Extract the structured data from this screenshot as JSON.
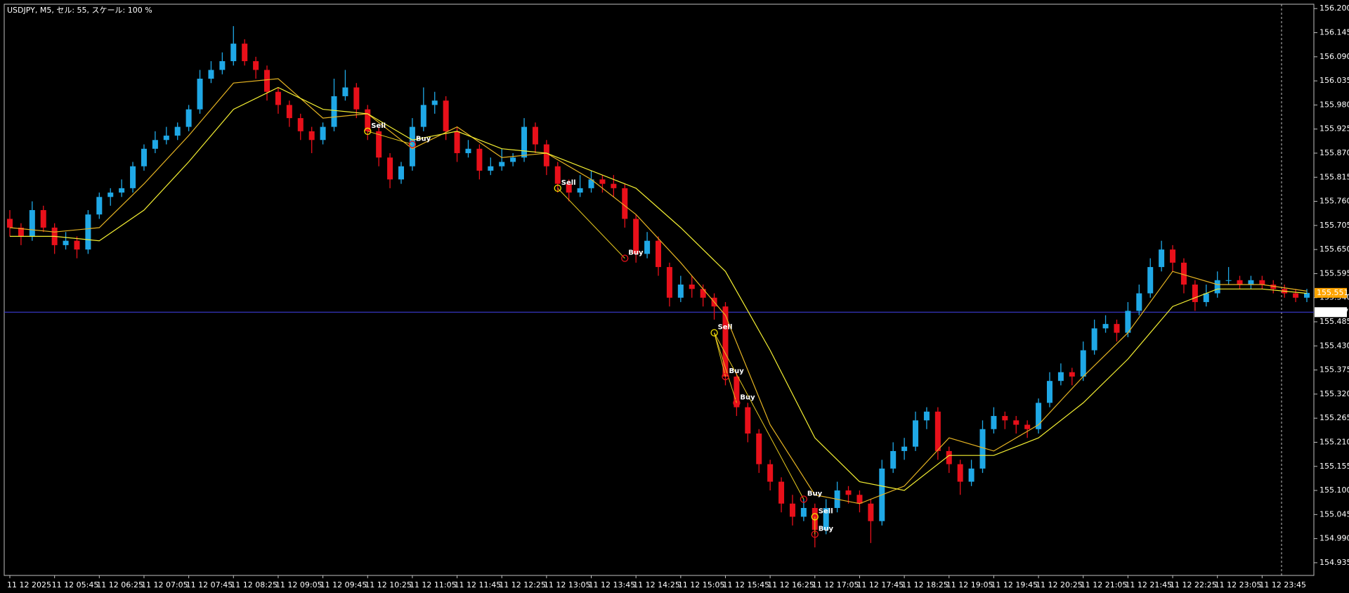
{
  "chart_data": {
    "type": "candlestick",
    "title": "USDJPY, M5, セル: 55, スケール: 100 %",
    "bull_color": "#1fa8e6",
    "bear_color": "#e8101a",
    "categories": [
      "11 12 2025",
      null,
      null,
      null,
      "11 12 05:45",
      null,
      null,
      null,
      "11 12 06:25",
      null,
      null,
      null,
      "11 12 07:05",
      null,
      null,
      null,
      "11 12 07:45",
      null,
      null,
      null,
      "11 12 08:25",
      null,
      null,
      null,
      "11 12 09:05",
      null,
      null,
      null,
      "11 12 09:45",
      null,
      null,
      null,
      "11 12 10:25",
      null,
      null,
      null,
      "11 12 11:05",
      null,
      null,
      null,
      "11 12 11:45",
      null,
      null,
      null,
      "11 12 12:25",
      null,
      null,
      null,
      "11 12 13:05",
      null,
      null,
      null,
      "11 12 13:45",
      null,
      null,
      null,
      "11 12 14:25",
      null,
      null,
      null,
      "11 12 15:05",
      null,
      null,
      null,
      "11 12 15:45",
      null,
      null,
      null,
      "11 12 16:25",
      null,
      null,
      null,
      "11 12 17:05",
      null,
      null,
      null,
      "11 12 17:45",
      null,
      null,
      null,
      "11 12 18:25",
      null,
      null,
      null,
      "11 12 19:05",
      null,
      null,
      null,
      "11 12 19:45",
      null,
      null,
      null,
      "11 12 20:25",
      null,
      null,
      null,
      "11 12 21:05",
      null,
      null,
      null,
      "11 12 21:45",
      null,
      null,
      null,
      "11 12 22:25",
      null,
      null,
      null,
      "11 12 23:05",
      null,
      null,
      null,
      "11 12 23:45",
      null,
      null,
      null,
      null
    ],
    "open": [
      155.72,
      155.7,
      155.68,
      155.74,
      155.7,
      155.66,
      155.67,
      155.65,
      155.73,
      155.77,
      155.78,
      155.79,
      155.84,
      155.88,
      155.9,
      155.91,
      155.93,
      155.97,
      156.04,
      156.06,
      156.08,
      156.12,
      156.08,
      156.06,
      156.01,
      155.98,
      155.95,
      155.92,
      155.9,
      155.93,
      156.0,
      156.02,
      155.97,
      155.92,
      155.86,
      155.81,
      155.84,
      155.93,
      155.98,
      155.99,
      155.92,
      155.87,
      155.88,
      155.83,
      155.84,
      155.85,
      155.86,
      155.93,
      155.89,
      155.84,
      155.8,
      155.78,
      155.79,
      155.81,
      155.8,
      155.79,
      155.72,
      155.64,
      155.67,
      155.61,
      155.54,
      155.57,
      155.56,
      155.54,
      155.52,
      155.36,
      155.29,
      155.23,
      155.16,
      155.12,
      155.07,
      155.04,
      155.06,
      155.01,
      155.06,
      155.1,
      155.09,
      155.07,
      155.03,
      155.15,
      155.19,
      155.2,
      155.26,
      155.28,
      155.19,
      155.16,
      155.12,
      155.15,
      155.24,
      155.27,
      155.26,
      155.25,
      155.24,
      155.3,
      155.35,
      155.37,
      155.36,
      155.42,
      155.47,
      155.48,
      155.46,
      155.51,
      155.55,
      155.61,
      155.65,
      155.62,
      155.57,
      155.53,
      155.55,
      155.58,
      155.58,
      155.57,
      155.58,
      155.57,
      155.56,
      155.55,
      155.54
    ],
    "high": [
      155.74,
      155.71,
      155.76,
      155.75,
      155.71,
      155.69,
      155.68,
      155.74,
      155.78,
      155.79,
      155.81,
      155.85,
      155.89,
      155.92,
      155.93,
      155.94,
      155.98,
      156.06,
      156.08,
      156.1,
      156.16,
      156.13,
      156.09,
      156.07,
      156.02,
      155.99,
      155.96,
      155.93,
      155.94,
      156.04,
      156.06,
      156.03,
      155.98,
      155.93,
      155.87,
      155.85,
      155.95,
      156.02,
      156.01,
      156.0,
      155.93,
      155.9,
      155.89,
      155.86,
      155.88,
      155.87,
      155.95,
      155.94,
      155.9,
      155.85,
      155.81,
      155.82,
      155.83,
      155.82,
      155.82,
      155.8,
      155.73,
      155.69,
      155.68,
      155.62,
      155.59,
      155.59,
      155.57,
      155.55,
      155.53,
      155.37,
      155.3,
      155.24,
      155.17,
      155.13,
      155.09,
      155.08,
      155.07,
      155.08,
      155.12,
      155.11,
      155.1,
      155.08,
      155.17,
      155.21,
      155.22,
      155.28,
      155.29,
      155.29,
      155.2,
      155.17,
      155.17,
      155.26,
      155.29,
      155.28,
      155.27,
      155.26,
      155.31,
      155.37,
      155.39,
      155.38,
      155.44,
      155.49,
      155.5,
      155.49,
      155.53,
      155.57,
      155.63,
      155.67,
      155.66,
      155.63,
      155.58,
      155.57,
      155.6,
      155.61,
      155.59,
      155.59,
      155.59,
      155.58,
      155.57,
      155.56,
      155.56
    ],
    "low": [
      155.68,
      155.66,
      155.67,
      155.69,
      155.64,
      155.65,
      155.63,
      155.64,
      155.72,
      155.75,
      155.77,
      155.78,
      155.83,
      155.87,
      155.89,
      155.9,
      155.92,
      155.96,
      156.03,
      156.05,
      156.07,
      156.07,
      156.04,
      155.99,
      155.96,
      155.93,
      155.9,
      155.87,
      155.89,
      155.92,
      155.99,
      155.95,
      155.9,
      155.84,
      155.79,
      155.8,
      155.83,
      155.92,
      155.96,
      155.9,
      155.85,
      155.86,
      155.81,
      155.82,
      155.83,
      155.84,
      155.85,
      155.87,
      155.82,
      155.78,
      155.76,
      155.77,
      155.78,
      155.78,
      155.77,
      155.7,
      155.62,
      155.63,
      155.59,
      155.52,
      155.53,
      155.54,
      155.52,
      155.49,
      155.34,
      155.27,
      155.21,
      155.14,
      155.1,
      155.05,
      155.02,
      155.03,
      154.97,
      155.0,
      155.05,
      155.07,
      155.05,
      154.98,
      155.02,
      155.14,
      155.17,
      155.19,
      155.24,
      155.17,
      155.14,
      155.09,
      155.11,
      155.14,
      155.23,
      155.24,
      155.23,
      155.22,
      155.23,
      155.29,
      155.34,
      155.34,
      155.35,
      155.41,
      155.46,
      155.44,
      155.45,
      155.5,
      155.54,
      155.6,
      155.6,
      155.55,
      155.51,
      155.52,
      155.54,
      155.57,
      155.56,
      155.56,
      155.56,
      155.55,
      155.54,
      155.53,
      155.53
    ],
    "close": [
      155.7,
      155.68,
      155.74,
      155.7,
      155.66,
      155.67,
      155.65,
      155.73,
      155.77,
      155.78,
      155.79,
      155.84,
      155.88,
      155.9,
      155.91,
      155.93,
      155.97,
      156.04,
      156.06,
      156.08,
      156.12,
      156.08,
      156.06,
      156.01,
      155.98,
      155.95,
      155.92,
      155.9,
      155.93,
      156.0,
      156.02,
      155.97,
      155.92,
      155.86,
      155.81,
      155.84,
      155.93,
      155.98,
      155.99,
      155.92,
      155.87,
      155.88,
      155.83,
      155.84,
      155.85,
      155.86,
      155.93,
      155.89,
      155.84,
      155.8,
      155.78,
      155.79,
      155.81,
      155.8,
      155.79,
      155.72,
      155.64,
      155.67,
      155.61,
      155.54,
      155.57,
      155.56,
      155.54,
      155.52,
      155.36,
      155.29,
      155.23,
      155.16,
      155.12,
      155.07,
      155.04,
      155.06,
      155.01,
      155.06,
      155.1,
      155.09,
      155.07,
      155.03,
      155.15,
      155.19,
      155.2,
      155.26,
      155.28,
      155.19,
      155.16,
      155.12,
      155.15,
      155.24,
      155.27,
      155.26,
      155.25,
      155.24,
      155.3,
      155.35,
      155.37,
      155.36,
      155.42,
      155.47,
      155.48,
      155.46,
      155.51,
      155.55,
      155.61,
      155.65,
      155.62,
      155.57,
      155.53,
      155.55,
      155.58,
      155.58,
      155.57,
      155.58,
      155.57,
      155.56,
      155.55,
      155.54,
      155.551
    ],
    "indicators": [
      {
        "color": "#e6b422",
        "x": [
          0,
          4,
          8,
          12,
          16,
          20,
          24,
          28,
          32,
          36,
          40,
          44,
          48,
          52,
          56,
          60,
          64,
          68,
          72,
          76,
          80,
          84,
          88,
          92,
          96,
          100,
          104,
          108,
          112,
          116
        ],
        "values": [
          155.7,
          155.69,
          155.7,
          155.8,
          155.91,
          156.03,
          156.04,
          155.95,
          155.96,
          155.88,
          155.93,
          155.86,
          155.87,
          155.81,
          155.73,
          155.62,
          155.5,
          155.25,
          155.09,
          155.07,
          155.11,
          155.22,
          155.19,
          155.25,
          155.36,
          155.46,
          155.6,
          155.57,
          155.57,
          155.555
        ]
      },
      {
        "color": "#f5f032",
        "x": [
          0,
          4,
          8,
          12,
          16,
          20,
          24,
          28,
          32,
          36,
          40,
          44,
          48,
          52,
          56,
          60,
          64,
          68,
          72,
          76,
          80,
          84,
          88,
          92,
          96,
          100,
          104,
          108,
          112,
          116
        ],
        "values": [
          155.68,
          155.68,
          155.67,
          155.74,
          155.85,
          155.97,
          156.02,
          155.97,
          155.96,
          155.9,
          155.92,
          155.88,
          155.87,
          155.83,
          155.79,
          155.7,
          155.6,
          155.42,
          155.22,
          155.12,
          155.1,
          155.18,
          155.18,
          155.22,
          155.3,
          155.4,
          155.52,
          155.56,
          155.56,
          155.55
        ]
      }
    ],
    "signals": [
      {
        "label": "Sell",
        "x": 32,
        "price": 155.92,
        "color": "#f5e400"
      },
      {
        "label": "Buy",
        "x": 36,
        "price": 155.89,
        "color": "#e8101a"
      },
      {
        "label": "Sell",
        "x": 49,
        "price": 155.79,
        "color": "#f5e400"
      },
      {
        "label": "Buy",
        "x": 55,
        "price": 155.63,
        "color": "#e8101a"
      },
      {
        "label": "Sell",
        "x": 63,
        "price": 155.46,
        "color": "#f5e400"
      },
      {
        "label": "Buy",
        "x": 64,
        "price": 155.36,
        "color": "#e8101a"
      },
      {
        "label": "Buy",
        "x": 65,
        "price": 155.3,
        "color": "#e8101a"
      },
      {
        "label": "Buy",
        "x": 71,
        "price": 155.08,
        "color": "#e8101a"
      },
      {
        "label": "Sell",
        "x": 72,
        "price": 155.04,
        "color": "#f5e400"
      },
      {
        "label": "Buy",
        "x": 72,
        "price": 155.0,
        "color": "#e8101a"
      }
    ],
    "horizontal_line": {
      "value": 155.507,
      "color": "#3c3cd2"
    },
    "price_label": {
      "value": 155.551,
      "color": "#ffa500"
    },
    "ylim": [
      154.906,
      156.21
    ],
    "yticks": [
      {
        "value": 156.2,
        "label": "156.200"
      },
      156.145,
      {
        "value": 156.09,
        "label": "156.090"
      },
      156.035,
      {
        "value": 155.98,
        "label": "155.980"
      },
      155.925,
      {
        "value": 155.87,
        "label": "155.870"
      },
      155.815,
      {
        "value": 155.76,
        "label": "155.760"
      },
      155.705,
      {
        "value": 155.65,
        "label": "155.650"
      },
      155.595,
      {
        "value": 155.54,
        "label": "155.540"
      },
      155.485,
      {
        "value": 155.43,
        "label": "155.430"
      },
      155.375,
      {
        "value": 155.32,
        "label": "155.320"
      },
      155.265,
      {
        "value": 155.21,
        "label": "155.210"
      },
      155.155,
      {
        "value": 155.1,
        "label": "155.100"
      },
      155.045,
      {
        "value": 154.99,
        "label": "154.990"
      },
      154.935
    ]
  }
}
